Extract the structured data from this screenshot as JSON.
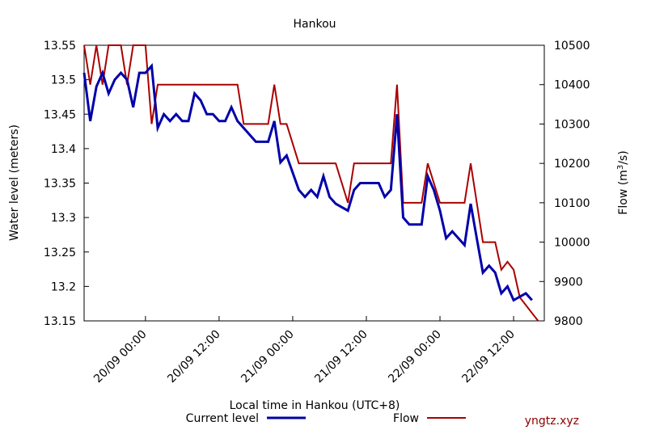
{
  "chart_data": {
    "type": "line",
    "title": "Hankou",
    "xlabel": "Local time in Hankou (UTC+8)",
    "ylabel_left": "Water level (meters)",
    "ylabel_right_prefix": "Flow (m",
    "ylabel_right_sup": "3",
    "ylabel_right_suffix": "/s)",
    "left_axis": {
      "range": [
        13.15,
        13.55
      ],
      "ticks": [
        13.15,
        13.2,
        13.25,
        13.3,
        13.35,
        13.4,
        13.45,
        13.5,
        13.55
      ],
      "tick_labels": [
        "13.15",
        "13.2",
        "13.25",
        "13.3",
        "13.35",
        "13.4",
        "13.45",
        "13.5",
        "13.55"
      ]
    },
    "right_axis": {
      "range": [
        9800,
        10500
      ],
      "ticks": [
        9800,
        9900,
        10000,
        10100,
        10200,
        10300,
        10400,
        10500
      ],
      "tick_labels": [
        "9800",
        "9900",
        "10000",
        "10100",
        "10200",
        "10300",
        "10400",
        "10500"
      ]
    },
    "x_axis": {
      "start": "2024-09-19T14:00",
      "end": "2024-09-22T17:00",
      "ticks": [
        "2024-09-20T00:00",
        "2024-09-20T12:00",
        "2024-09-21T00:00",
        "2024-09-21T12:00",
        "2024-09-22T00:00",
        "2024-09-22T12:00"
      ],
      "tick_labels": [
        "20/09 00:00",
        "20/09 12:00",
        "21/09 00:00",
        "21/09 12:00",
        "22/09 00:00",
        "22/09 12:00"
      ]
    },
    "grid": false,
    "legend_position": "bottom",
    "series": [
      {
        "name": "Current level",
        "axis": "left",
        "color": "#0000aa",
        "points": [
          [
            "2024-09-19T14:00",
            13.51
          ],
          [
            "2024-09-19T15:00",
            13.44
          ],
          [
            "2024-09-19T16:00",
            13.49
          ],
          [
            "2024-09-19T17:00",
            13.51
          ],
          [
            "2024-09-19T18:00",
            13.48
          ],
          [
            "2024-09-19T19:00",
            13.5
          ],
          [
            "2024-09-19T20:00",
            13.51
          ],
          [
            "2024-09-19T21:00",
            13.5
          ],
          [
            "2024-09-19T22:00",
            13.46
          ],
          [
            "2024-09-19T23:00",
            13.51
          ],
          [
            "2024-09-20T00:00",
            13.51
          ],
          [
            "2024-09-20T01:00",
            13.52
          ],
          [
            "2024-09-20T02:00",
            13.43
          ],
          [
            "2024-09-20T03:00",
            13.45
          ],
          [
            "2024-09-20T04:00",
            13.44
          ],
          [
            "2024-09-20T05:00",
            13.45
          ],
          [
            "2024-09-20T06:00",
            13.44
          ],
          [
            "2024-09-20T07:00",
            13.44
          ],
          [
            "2024-09-20T08:00",
            13.48
          ],
          [
            "2024-09-20T09:00",
            13.47
          ],
          [
            "2024-09-20T10:00",
            13.45
          ],
          [
            "2024-09-20T11:00",
            13.45
          ],
          [
            "2024-09-20T12:00",
            13.44
          ],
          [
            "2024-09-20T13:00",
            13.44
          ],
          [
            "2024-09-20T14:00",
            13.46
          ],
          [
            "2024-09-20T15:00",
            13.44
          ],
          [
            "2024-09-20T18:00",
            13.41
          ],
          [
            "2024-09-20T20:00",
            13.41
          ],
          [
            "2024-09-20T21:00",
            13.44
          ],
          [
            "2024-09-20T22:00",
            13.38
          ],
          [
            "2024-09-20T23:00",
            13.39
          ],
          [
            "2024-09-21T01:00",
            13.34
          ],
          [
            "2024-09-21T02:00",
            13.33
          ],
          [
            "2024-09-21T03:00",
            13.34
          ],
          [
            "2024-09-21T04:00",
            13.33
          ],
          [
            "2024-09-21T05:00",
            13.36
          ],
          [
            "2024-09-21T06:00",
            13.33
          ],
          [
            "2024-09-21T07:00",
            13.32
          ],
          [
            "2024-09-21T09:00",
            13.31
          ],
          [
            "2024-09-21T10:00",
            13.34
          ],
          [
            "2024-09-21T11:00",
            13.35
          ],
          [
            "2024-09-21T14:00",
            13.35
          ],
          [
            "2024-09-21T15:00",
            13.33
          ],
          [
            "2024-09-21T16:00",
            13.34
          ],
          [
            "2024-09-21T17:00",
            13.45
          ],
          [
            "2024-09-21T18:00",
            13.3
          ],
          [
            "2024-09-21T19:00",
            13.29
          ],
          [
            "2024-09-21T21:00",
            13.29
          ],
          [
            "2024-09-21T22:00",
            13.36
          ],
          [
            "2024-09-21T23:00",
            13.34
          ],
          [
            "2024-09-22T00:00",
            13.31
          ],
          [
            "2024-09-22T01:00",
            13.27
          ],
          [
            "2024-09-22T02:00",
            13.28
          ],
          [
            "2024-09-22T04:00",
            13.26
          ],
          [
            "2024-09-22T05:00",
            13.32
          ],
          [
            "2024-09-22T06:00",
            13.27
          ],
          [
            "2024-09-22T07:00",
            13.22
          ],
          [
            "2024-09-22T08:00",
            13.23
          ],
          [
            "2024-09-22T09:00",
            13.22
          ],
          [
            "2024-09-22T10:00",
            13.19
          ],
          [
            "2024-09-22T11:00",
            13.2
          ],
          [
            "2024-09-22T12:00",
            13.18
          ],
          [
            "2024-09-22T14:00",
            13.19
          ],
          [
            "2024-09-22T15:00",
            13.18
          ]
        ]
      },
      {
        "name": "Flow",
        "axis": "right",
        "color": "#aa0000",
        "points": [
          [
            "2024-09-19T14:00",
            10500
          ],
          [
            "2024-09-19T15:00",
            10400
          ],
          [
            "2024-09-19T16:00",
            10500
          ],
          [
            "2024-09-19T17:00",
            10400
          ],
          [
            "2024-09-19T18:00",
            10500
          ],
          [
            "2024-09-19T20:00",
            10500
          ],
          [
            "2024-09-19T21:00",
            10400
          ],
          [
            "2024-09-19T22:00",
            10500
          ],
          [
            "2024-09-20T00:00",
            10500
          ],
          [
            "2024-09-20T01:00",
            10300
          ],
          [
            "2024-09-20T02:00",
            10400
          ],
          [
            "2024-09-20T15:00",
            10400
          ],
          [
            "2024-09-20T16:00",
            10300
          ],
          [
            "2024-09-20T20:00",
            10300
          ],
          [
            "2024-09-20T21:00",
            10400
          ],
          [
            "2024-09-20T22:00",
            10300
          ],
          [
            "2024-09-20T23:00",
            10300
          ],
          [
            "2024-09-21T01:00",
            10200
          ],
          [
            "2024-09-21T07:00",
            10200
          ],
          [
            "2024-09-21T09:00",
            10100
          ],
          [
            "2024-09-21T10:00",
            10200
          ],
          [
            "2024-09-21T16:00",
            10200
          ],
          [
            "2024-09-21T17:00",
            10400
          ],
          [
            "2024-09-21T18:00",
            10100
          ],
          [
            "2024-09-21T21:00",
            10100
          ],
          [
            "2024-09-21T22:00",
            10200
          ],
          [
            "2024-09-22T00:00",
            10100
          ],
          [
            "2024-09-22T04:00",
            10100
          ],
          [
            "2024-09-22T05:00",
            10200
          ],
          [
            "2024-09-22T07:00",
            10000
          ],
          [
            "2024-09-22T08:00",
            10000
          ],
          [
            "2024-09-22T09:00",
            10000
          ],
          [
            "2024-09-22T10:00",
            9930
          ],
          [
            "2024-09-22T11:00",
            9950
          ],
          [
            "2024-09-22T12:00",
            9930
          ],
          [
            "2024-09-22T13:00",
            9860
          ],
          [
            "2024-09-22T15:00",
            9820
          ],
          [
            "2024-09-22T16:00",
            9800
          ]
        ]
      }
    ]
  },
  "watermark": "yngtz.xyz"
}
